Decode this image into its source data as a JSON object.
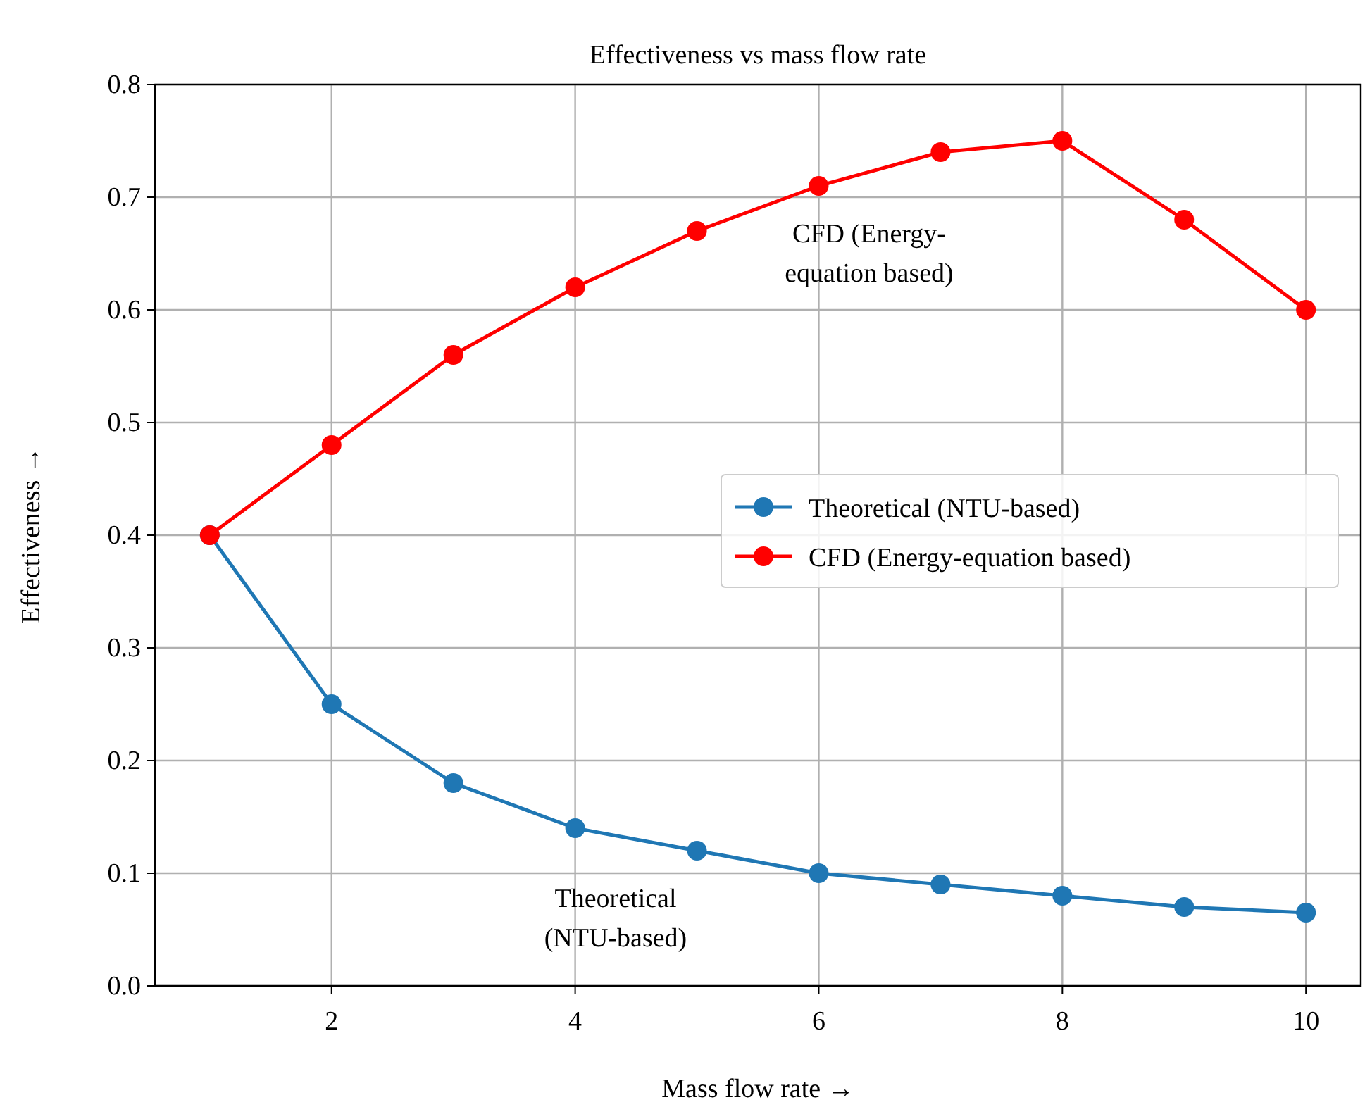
{
  "chart_data": {
    "type": "line",
    "title": "Effectiveness vs mass flow rate",
    "xlabel": "Mass flow rate →",
    "ylabel": "Effectiveness →",
    "x": [
      1,
      2,
      3,
      4,
      5,
      6,
      7,
      8,
      9,
      10
    ],
    "series": [
      {
        "name": "Theoretical (NTU-based)",
        "color": "#1f77b4",
        "values": [
          0.4,
          0.25,
          0.18,
          0.14,
          0.12,
          0.1,
          0.09,
          0.08,
          0.07,
          0.065
        ]
      },
      {
        "name": "CFD (Energy-equation based)",
        "color": "#ff0000",
        "values": [
          0.4,
          0.48,
          0.56,
          0.62,
          0.67,
          0.71,
          0.74,
          0.75,
          0.68,
          0.6
        ]
      }
    ],
    "xlim": [
      0.55,
      10.45
    ],
    "xticks": [
      2,
      4,
      6,
      8,
      10
    ],
    "ylim": [
      0,
      0.8
    ],
    "yticks": [
      {
        "value": 0,
        "label": "0.0"
      },
      0.1,
      0.2,
      0.3,
      0.4,
      0.5,
      0.6,
      0.7,
      0.8
    ],
    "annotations": [
      "CFD (Energy-\nequation based)",
      "Theoretical\n(NTU-based)"
    ],
    "grid": true,
    "legend": "right",
    "marker": "circle",
    "line_style": "solid"
  }
}
